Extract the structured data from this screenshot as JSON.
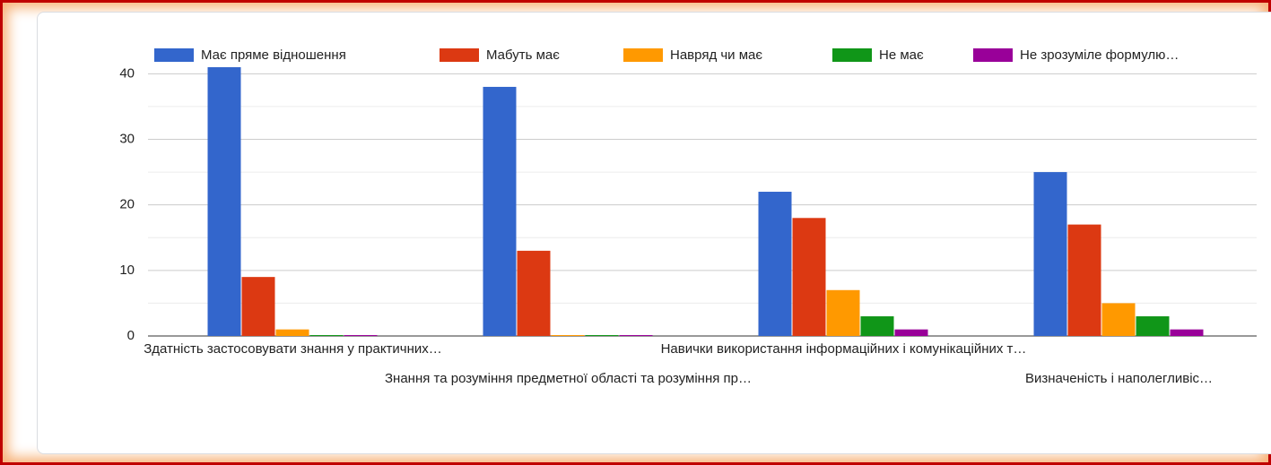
{
  "chart_data": {
    "type": "bar",
    "categories": [
      "Здатність застосовувати знання у практичних…",
      "Знання та розуміння предметної області та розуміння пр…",
      "Навички використання інформаційних і комунікаційних т…",
      "Визначеність і наполегливіс…"
    ],
    "series": [
      {
        "name": "Має пряме відношення",
        "color": "#3366cc",
        "values": [
          41,
          38,
          22,
          25
        ]
      },
      {
        "name": "Мабуть має",
        "color": "#dc3912",
        "values": [
          9,
          13,
          18,
          17
        ]
      },
      {
        "name": "Навряд чи має",
        "color": "#ff9900",
        "values": [
          1,
          0,
          7,
          5
        ]
      },
      {
        "name": "Не має",
        "color": "#109618",
        "values": [
          0,
          0,
          3,
          3
        ]
      },
      {
        "name": "Не зрозуміле формулю…",
        "color": "#990099",
        "values": [
          0,
          0,
          1,
          1
        ]
      }
    ],
    "ylim": [
      0,
      41
    ],
    "yticks": [
      0,
      10,
      20,
      30,
      40
    ],
    "minor_yticks": [
      5,
      15,
      25,
      35
    ],
    "grid": true,
    "legend": "top"
  }
}
